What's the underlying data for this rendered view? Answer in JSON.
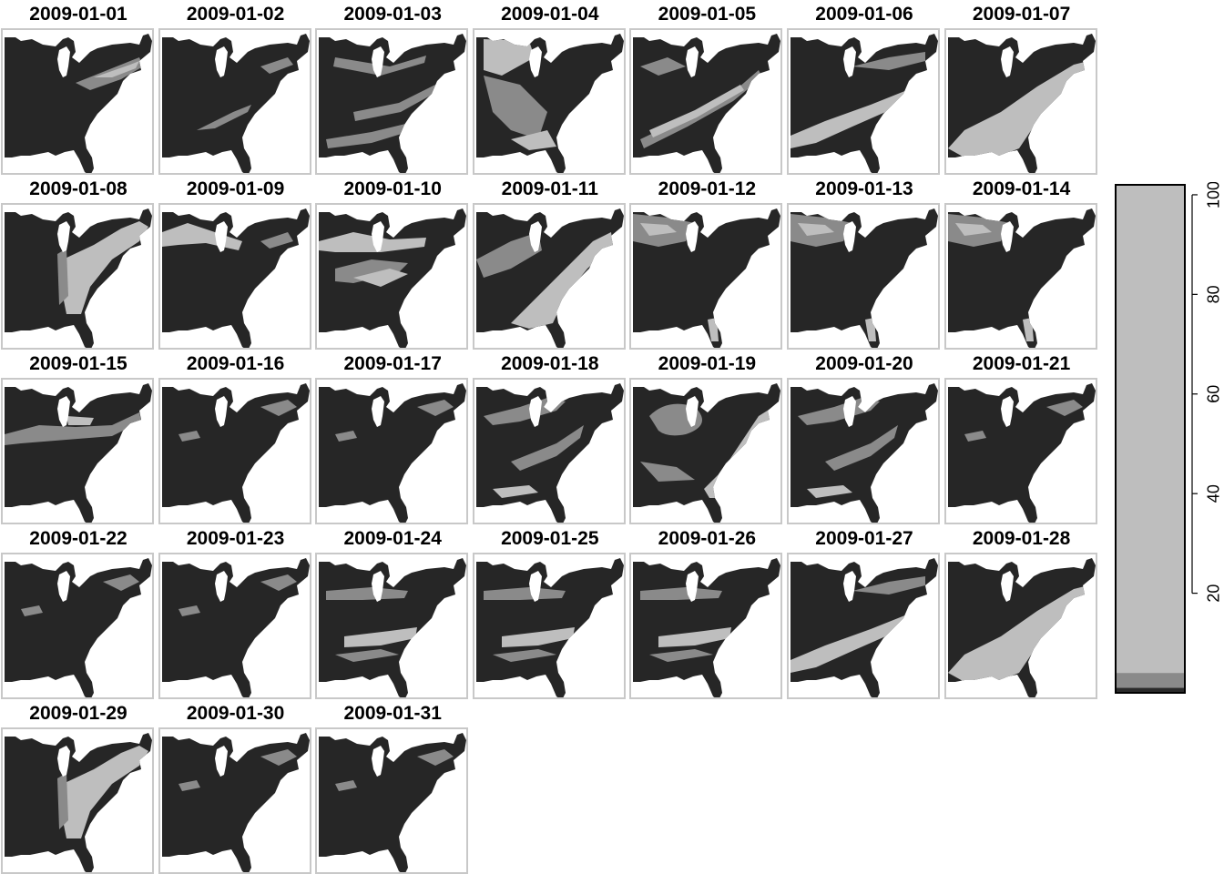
{
  "panels": [
    {
      "date": "2009-01-01",
      "pattern": "ne-band"
    },
    {
      "date": "2009-01-02",
      "pattern": "sparse-streaks"
    },
    {
      "date": "2009-01-03",
      "pattern": "speckled"
    },
    {
      "date": "2009-01-04",
      "pattern": "west-cover"
    },
    {
      "date": "2009-01-05",
      "pattern": "diagonal-streaks"
    },
    {
      "date": "2009-01-06",
      "pattern": "southern-band"
    },
    {
      "date": "2009-01-07",
      "pattern": "large-diagonal"
    },
    {
      "date": "2009-01-08",
      "pattern": "east-cover"
    },
    {
      "date": "2009-01-09",
      "pattern": "north-band"
    },
    {
      "date": "2009-01-10",
      "pattern": "mixed-streaks"
    },
    {
      "date": "2009-01-11",
      "pattern": "diagonal-wedge"
    },
    {
      "date": "2009-01-12",
      "pattern": "north-light"
    },
    {
      "date": "2009-01-13",
      "pattern": "north-light"
    },
    {
      "date": "2009-01-14",
      "pattern": "north-light"
    },
    {
      "date": "2009-01-15",
      "pattern": "great-lakes"
    },
    {
      "date": "2009-01-16",
      "pattern": "mostly-dark"
    },
    {
      "date": "2009-01-17",
      "pattern": "mostly-dark"
    },
    {
      "date": "2009-01-18",
      "pattern": "mid-scatter"
    },
    {
      "date": "2009-01-19",
      "pattern": "swirl"
    },
    {
      "date": "2009-01-20",
      "pattern": "mid-scatter"
    },
    {
      "date": "2009-01-21",
      "pattern": "mostly-dark"
    },
    {
      "date": "2009-01-22",
      "pattern": "mostly-dark"
    },
    {
      "date": "2009-01-23",
      "pattern": "mostly-dark"
    },
    {
      "date": "2009-01-24",
      "pattern": "mid-streaks"
    },
    {
      "date": "2009-01-25",
      "pattern": "mid-streaks"
    },
    {
      "date": "2009-01-26",
      "pattern": "mid-streaks"
    },
    {
      "date": "2009-01-27",
      "pattern": "southern-band"
    },
    {
      "date": "2009-01-28",
      "pattern": "large-diagonal"
    },
    {
      "date": "2009-01-29",
      "pattern": "east-cover"
    },
    {
      "date": "2009-01-30",
      "pattern": "mostly-dark"
    },
    {
      "date": "2009-01-31",
      "pattern": "mostly-dark"
    }
  ],
  "legend": {
    "ticks": [
      "20",
      "40",
      "60",
      "80",
      "100"
    ],
    "tick_values": [
      20,
      40,
      60,
      80,
      100
    ],
    "range": [
      0,
      102
    ],
    "classes": [
      {
        "from": 0,
        "to": 1,
        "color": "#2a2a2a"
      },
      {
        "from": 1,
        "to": 4,
        "color": "#8a8a8a"
      },
      {
        "from": 4,
        "to": 102,
        "color": "#bebebe"
      }
    ]
  },
  "colors": {
    "dark": "#262626",
    "mid": "#8a8a8a",
    "light": "#bebebe",
    "frame": "#c8c8c8"
  }
}
